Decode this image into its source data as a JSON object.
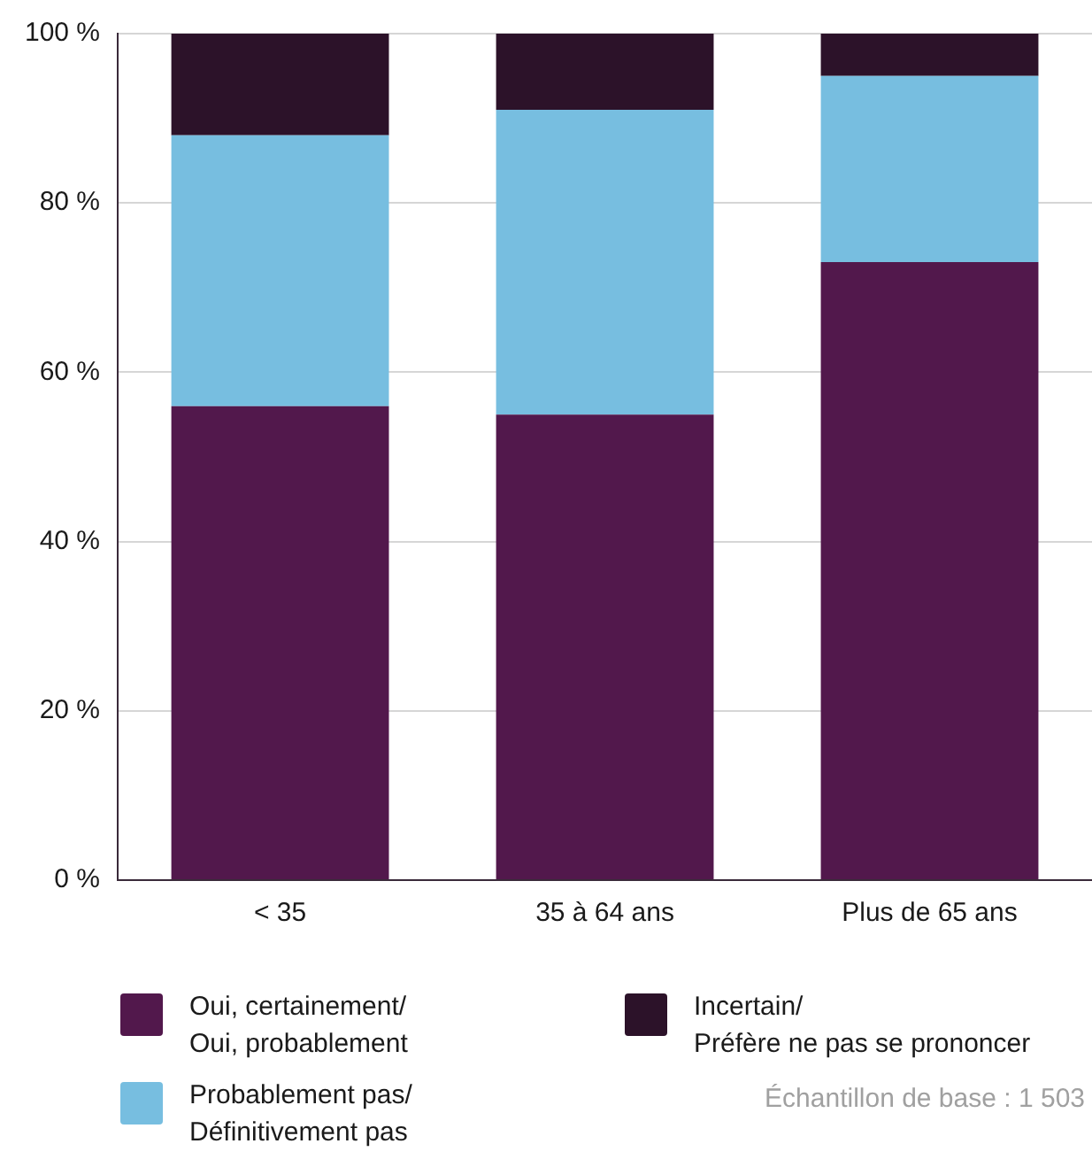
{
  "chart_data": {
    "type": "bar",
    "stacked": true,
    "categories": [
      "< 35",
      "35 à 64 ans",
      "Plus de 65 ans"
    ],
    "series": [
      {
        "name": "Oui, certainement/ Oui, probablement",
        "color": "#52184c",
        "values": [
          56,
          55,
          73
        ]
      },
      {
        "name": "Probablement pas/ Définitivement pas",
        "color": "#77bee0",
        "values": [
          32,
          36,
          22
        ]
      },
      {
        "name": "Incertain/ Préfère ne pas se prononcer",
        "color": "#2c1229",
        "values": [
          12,
          9,
          5
        ]
      }
    ],
    "ylim": [
      0,
      100
    ],
    "yticks": [
      {
        "value": 0,
        "label": "0 %"
      },
      {
        "value": 20,
        "label": "20 %"
      },
      {
        "value": 40,
        "label": "40 %"
      },
      {
        "value": 60,
        "label": "60 %"
      },
      {
        "value": 80,
        "label": "80 %"
      },
      {
        "value": 100,
        "label": "100 %"
      }
    ],
    "grid": "y",
    "legend": "bottom",
    "annotations": [
      "Échantillon de base : 1 503"
    ]
  }
}
